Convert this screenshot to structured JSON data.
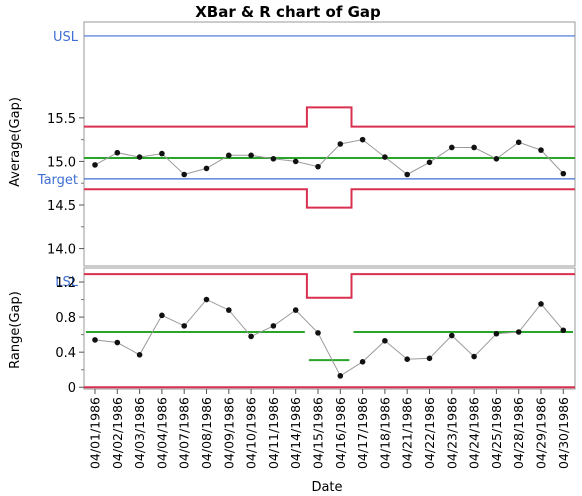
{
  "chart_data": {
    "type": "line",
    "title": "XBar & R chart of Gap",
    "xlabel": "Date",
    "categories": [
      "04/01/1986",
      "04/02/1986",
      "04/03/1986",
      "04/04/1986",
      "04/07/1986",
      "04/08/1986",
      "04/09/1986",
      "04/10/1986",
      "04/11/1986",
      "04/14/1986",
      "04/15/1986",
      "04/16/1986",
      "04/17/1986",
      "04/18/1986",
      "04/21/1986",
      "04/22/1986",
      "04/23/1986",
      "04/24/1986",
      "04/25/1986",
      "04/28/1986",
      "04/29/1986",
      "04/30/1986"
    ],
    "xbar": {
      "ylabel": "Average(Gap)",
      "ylim": [
        13.8,
        16.6
      ],
      "ticks": [
        "14.0",
        "14.5",
        "15.0",
        "15.5"
      ],
      "tick_values": [
        14.0,
        14.5,
        15.0,
        15.5
      ],
      "values": [
        14.96,
        15.1,
        15.05,
        15.09,
        14.85,
        14.92,
        15.07,
        15.07,
        15.03,
        15.0,
        14.94,
        15.2,
        15.25,
        15.05,
        14.85,
        14.99,
        15.16,
        15.16,
        15.03,
        15.22,
        15.13,
        14.86
      ],
      "center_line": 15.04,
      "ucl_segments": [
        {
          "from": "04/01/1986",
          "to": "04/14/1986",
          "value": 15.4
        },
        {
          "from": "04/15/1986",
          "to": "04/16/1986",
          "value": 15.62
        },
        {
          "from": "04/17/1986",
          "to": "04/30/1986",
          "value": 15.4
        }
      ],
      "lcl_segments": [
        {
          "from": "04/01/1986",
          "to": "04/14/1986",
          "value": 14.68
        },
        {
          "from": "04/15/1986",
          "to": "04/16/1986",
          "value": 14.47
        },
        {
          "from": "04/17/1986",
          "to": "04/30/1986",
          "value": 14.68
        }
      ],
      "spec_limits": [
        {
          "label": "USL",
          "value": 16.44
        },
        {
          "label": "Target",
          "value": 14.8
        },
        {
          "label": "LSL",
          "value": 13.63
        }
      ]
    },
    "range": {
      "ylabel": "Range(Gap)",
      "ylim": [
        -0.02,
        1.36
      ],
      "ticks": [
        "0",
        "0.4",
        "0.8",
        "1.2"
      ],
      "tick_values": [
        0,
        0.4,
        0.8,
        1.2
      ],
      "values": [
        0.54,
        0.51,
        0.37,
        0.82,
        0.7,
        1.0,
        0.88,
        0.58,
        0.7,
        0.88,
        0.62,
        0.13,
        0.29,
        0.53,
        0.32,
        0.33,
        0.59,
        0.35,
        0.61,
        0.63,
        0.95,
        0.65
      ],
      "center_segments": [
        {
          "from": "04/01/1986",
          "to": "04/14/1986",
          "value": 0.63
        },
        {
          "from": "04/15/1986",
          "to": "04/16/1986",
          "value": 0.31
        },
        {
          "from": "04/17/1986",
          "to": "04/30/1986",
          "value": 0.63
        }
      ],
      "ucl_segments": [
        {
          "from": "04/01/1986",
          "to": "04/14/1986",
          "value": 1.29
        },
        {
          "from": "04/15/1986",
          "to": "04/16/1986",
          "value": 1.02
        },
        {
          "from": "04/17/1986",
          "to": "04/30/1986",
          "value": 1.29
        }
      ],
      "lcl_value": 0
    },
    "colors": {
      "control_limit": "#d9304f",
      "center_line": "#2aa52a",
      "spec_limit": "#3f6fd6",
      "point": "#111111",
      "connector": "#9a9a9a"
    }
  }
}
